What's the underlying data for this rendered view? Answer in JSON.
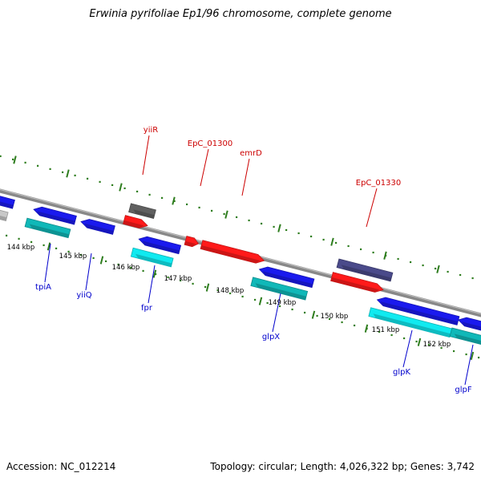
{
  "title": "Erwinia pyrifoliae Ep1/96 chromosome, complete genome",
  "footer": {
    "accession": "Accession: NC_012214",
    "stats": "Topology: circular; Length: 4,026,322 bp; Genes: 3,742"
  },
  "colors": {
    "backbone": "#888888",
    "tick": "#2e7d1e",
    "forward_label": "#cc0000",
    "reverse_label": "#0000cc",
    "red": "#ff1a1a",
    "gray": "#606060",
    "slate": "#4a4a8a",
    "blue": "#1a1aee",
    "teal": "#10b8b8",
    "cyan": "#10eaf0",
    "silver": "#c8c8c8"
  },
  "scale_labels": [
    "144 kbp",
    "145 kbp",
    "146 kbp",
    "147 kbp",
    "148 kbp",
    "149 kbp",
    "150 kbp",
    "151 kbp",
    "152 kbp"
  ],
  "forward_genes": [
    {
      "label": "yiiR",
      "color": "red"
    },
    {
      "label": "EpC_01300",
      "color": "red"
    },
    {
      "label": "emrD",
      "color": "red"
    },
    {
      "label": "EpC_01330",
      "color": "red"
    }
  ],
  "reverse_genes": [
    {
      "label": "tpiA",
      "color": "teal"
    },
    {
      "label": "yiiQ",
      "color": "blue"
    },
    {
      "label": "fpr",
      "color": "cyan"
    },
    {
      "label": "glpX",
      "color": "teal"
    },
    {
      "label": "glpK",
      "color": "cyan"
    },
    {
      "label": "glpF",
      "color": "teal"
    }
  ]
}
